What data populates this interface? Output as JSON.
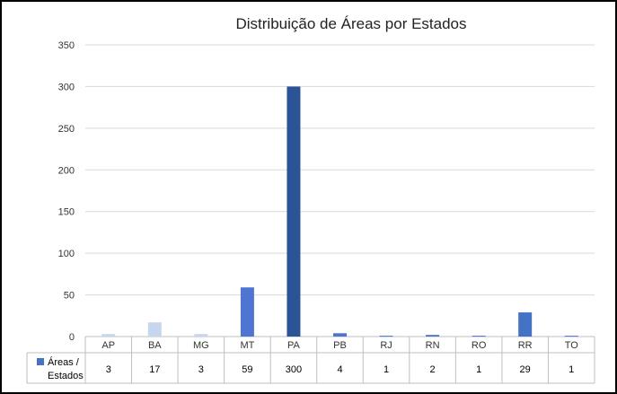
{
  "chart_data": {
    "type": "bar",
    "title": "Distribuição de Áreas por Estados",
    "categories": [
      "AP",
      "BA",
      "MG",
      "MT",
      "PA",
      "PB",
      "RJ",
      "RN",
      "RO",
      "RR",
      "TO"
    ],
    "series": [
      {
        "name": "Áreas / Estados",
        "values": [
          3,
          17,
          3,
          59,
          300,
          4,
          1,
          2,
          1,
          29,
          1
        ],
        "colors": [
          "#c6d6ee",
          "#c6d6ee",
          "#c6d6ee",
          "#4f74d1",
          "#2b5497",
          "#4f74d1",
          "#4f74d1",
          "#4f74d1",
          "#4f74d1",
          "#4472c4",
          "#4f74d1"
        ]
      }
    ],
    "ylim": [
      0,
      350
    ],
    "yticks": [
      0,
      50,
      100,
      150,
      200,
      250,
      300,
      350
    ],
    "legend_color": "#4472c4",
    "grid": true,
    "legend_position": "data-table"
  }
}
